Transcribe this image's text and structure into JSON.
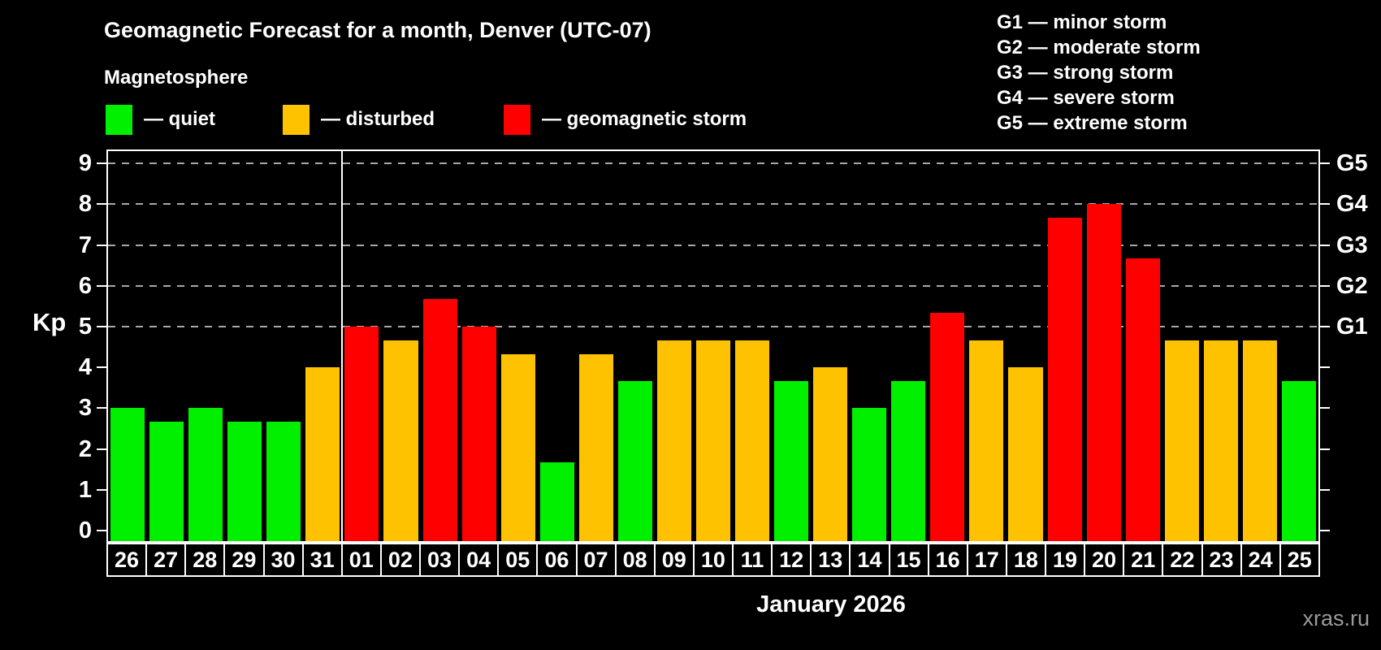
{
  "header": {
    "title": "Geomagnetic Forecast for a month, Denver (UTC-07)",
    "subtitle": "Magnetosphere"
  },
  "legend": {
    "items": [
      {
        "key": "quiet",
        "label": "— quiet",
        "color": "#00f000"
      },
      {
        "key": "disturbed",
        "label": "— disturbed",
        "color": "#ffc200"
      },
      {
        "key": "storm",
        "label": "— geomagnetic storm",
        "color": "#ff0000"
      }
    ]
  },
  "g_scale_legend": [
    "G1 — minor storm",
    "G2 — moderate storm",
    "G3 — strong storm",
    "G4 — severe storm",
    "G5 — extreme storm"
  ],
  "watermark": "xras.ru",
  "colors": {
    "background": "#000000",
    "text": "#ffffff",
    "grid": "#a8a8a8",
    "axis": "#ffffff",
    "watermark": "#9b9b9b"
  },
  "chart_data": {
    "type": "bar",
    "title": "Geomagnetic Forecast for a month, Denver (UTC-07)",
    "subtitle": "Magnetosphere",
    "xlabel": "January 2026",
    "ylabel": "Kp",
    "ylim": [
      0,
      9.4
    ],
    "yticks": [
      0,
      1,
      2,
      3,
      4,
      5,
      6,
      7,
      8,
      9
    ],
    "gridlines_at": [
      5,
      6,
      7,
      8,
      9
    ],
    "grid": "horizontal dashed lines at storm levels only",
    "right_axis": [
      {
        "label": "G1",
        "value": 5
      },
      {
        "label": "G2",
        "value": 6
      },
      {
        "label": "G3",
        "value": 7
      },
      {
        "label": "G4",
        "value": 8
      },
      {
        "label": "G5",
        "value": 9
      }
    ],
    "right_axis_minor_ticks": [
      0,
      1,
      2,
      3,
      4
    ],
    "month_separator_after_category": "31",
    "categories": [
      "26",
      "27",
      "28",
      "29",
      "30",
      "31",
      "01",
      "02",
      "03",
      "04",
      "05",
      "06",
      "07",
      "08",
      "09",
      "10",
      "11",
      "12",
      "13",
      "14",
      "15",
      "16",
      "17",
      "18",
      "19",
      "20",
      "21",
      "22",
      "23",
      "24",
      "25"
    ],
    "series": [
      {
        "name": "Kp forecast",
        "values": [
          3.0,
          2.67,
          3.0,
          2.67,
          2.67,
          4.0,
          5.0,
          4.67,
          5.67,
          5.0,
          4.33,
          1.67,
          4.33,
          3.67,
          4.67,
          4.67,
          4.67,
          3.67,
          4.0,
          3.0,
          3.67,
          5.33,
          4.67,
          4.0,
          7.67,
          8.0,
          6.67,
          4.67,
          4.67,
          4.67,
          3.67
        ]
      }
    ],
    "statuses": [
      "quiet",
      "quiet",
      "quiet",
      "quiet",
      "quiet",
      "disturbed",
      "storm",
      "disturbed",
      "storm",
      "storm",
      "disturbed",
      "quiet",
      "disturbed",
      "quiet",
      "disturbed",
      "disturbed",
      "disturbed",
      "quiet",
      "disturbed",
      "quiet",
      "quiet",
      "storm",
      "disturbed",
      "disturbed",
      "storm",
      "storm",
      "storm",
      "disturbed",
      "disturbed",
      "disturbed",
      "quiet"
    ]
  }
}
